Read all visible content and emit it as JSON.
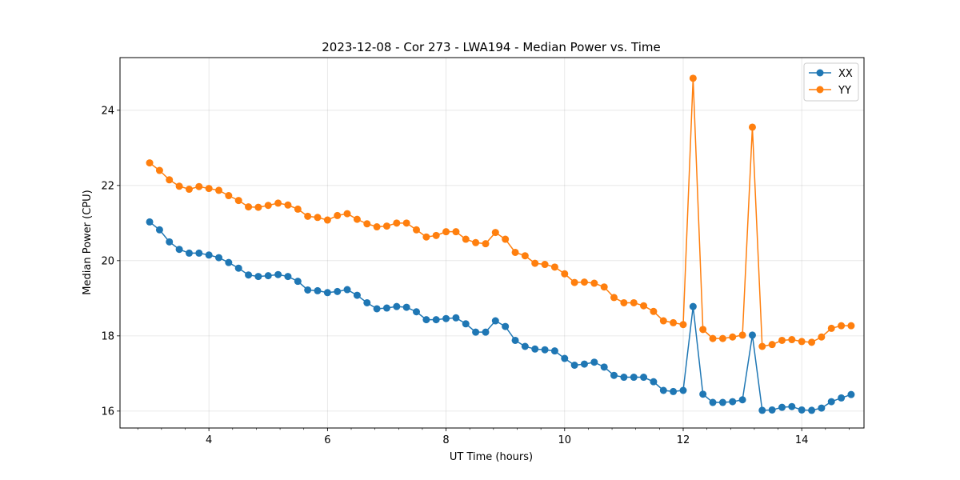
{
  "chart_data": {
    "type": "line",
    "title": "2023-12-08 - Cor 273 - LWA194 - Median Power vs. Time",
    "xlabel": "UT Time (hours)",
    "ylabel": "Median Power (CPU)",
    "xlim": [
      2.5,
      15.05
    ],
    "ylim": [
      15.55,
      25.4
    ],
    "xticks": [
      4,
      6,
      8,
      10,
      12,
      14
    ],
    "yticks": [
      16,
      18,
      20,
      22,
      24
    ],
    "x_minor_step": 0.4,
    "grid": true,
    "legend_position": "top-right",
    "colors": {
      "XX": "#1f77b4",
      "YY": "#ff7f0e"
    },
    "x": [
      3.0,
      3.167,
      3.333,
      3.5,
      3.667,
      3.833,
      4.0,
      4.167,
      4.333,
      4.5,
      4.667,
      4.833,
      5.0,
      5.167,
      5.333,
      5.5,
      5.667,
      5.833,
      6.0,
      6.167,
      6.333,
      6.5,
      6.667,
      6.833,
      7.0,
      7.167,
      7.333,
      7.5,
      7.667,
      7.833,
      8.0,
      8.167,
      8.333,
      8.5,
      8.667,
      8.833,
      9.0,
      9.167,
      9.333,
      9.5,
      9.667,
      9.833,
      10.0,
      10.167,
      10.333,
      10.5,
      10.667,
      10.833,
      11.0,
      11.167,
      11.333,
      11.5,
      11.667,
      11.833,
      12.0,
      12.167,
      12.333,
      12.5,
      12.667,
      12.833,
      13.0,
      13.167,
      13.333,
      13.5,
      13.667,
      13.833,
      14.0,
      14.167,
      14.333,
      14.5,
      14.667,
      14.833
    ],
    "series": [
      {
        "name": "XX",
        "values": [
          21.03,
          20.82,
          20.5,
          20.3,
          20.2,
          20.2,
          20.15,
          20.08,
          19.95,
          19.8,
          19.62,
          19.58,
          19.6,
          19.63,
          19.58,
          19.45,
          19.22,
          19.2,
          19.15,
          19.18,
          19.23,
          19.08,
          18.88,
          18.72,
          18.74,
          18.78,
          18.76,
          18.64,
          18.43,
          18.43,
          18.46,
          18.48,
          18.32,
          18.1,
          18.1,
          18.4,
          18.25,
          17.88,
          17.72,
          17.65,
          17.63,
          17.6,
          17.4,
          17.22,
          17.25,
          17.3,
          17.17,
          16.95,
          16.9,
          16.9,
          16.9,
          16.78,
          16.55,
          16.52,
          16.55,
          18.78,
          16.45,
          16.23,
          16.23,
          16.25,
          16.3,
          18.02,
          16.02,
          16.03,
          16.1,
          16.12,
          16.03,
          16.02,
          16.08,
          16.25,
          16.35,
          16.44
        ]
      },
      {
        "name": "YY",
        "values": [
          22.6,
          22.4,
          22.15,
          21.98,
          21.9,
          21.97,
          21.92,
          21.87,
          21.73,
          21.6,
          21.43,
          21.42,
          21.47,
          21.53,
          21.48,
          21.37,
          21.18,
          21.15,
          21.08,
          21.2,
          21.25,
          21.1,
          20.98,
          20.9,
          20.92,
          21.0,
          21.0,
          20.82,
          20.63,
          20.67,
          20.77,
          20.77,
          20.57,
          20.48,
          20.45,
          20.75,
          20.57,
          20.22,
          20.13,
          19.93,
          19.9,
          19.83,
          19.65,
          19.42,
          19.43,
          19.4,
          19.3,
          19.02,
          18.88,
          18.88,
          18.8,
          18.65,
          18.4,
          18.35,
          18.3,
          24.85,
          18.17,
          17.93,
          17.93,
          17.97,
          18.02,
          23.55,
          17.72,
          17.77,
          17.88,
          17.9,
          17.85,
          17.83,
          17.97,
          18.2,
          18.27,
          18.27
        ]
      }
    ]
  }
}
